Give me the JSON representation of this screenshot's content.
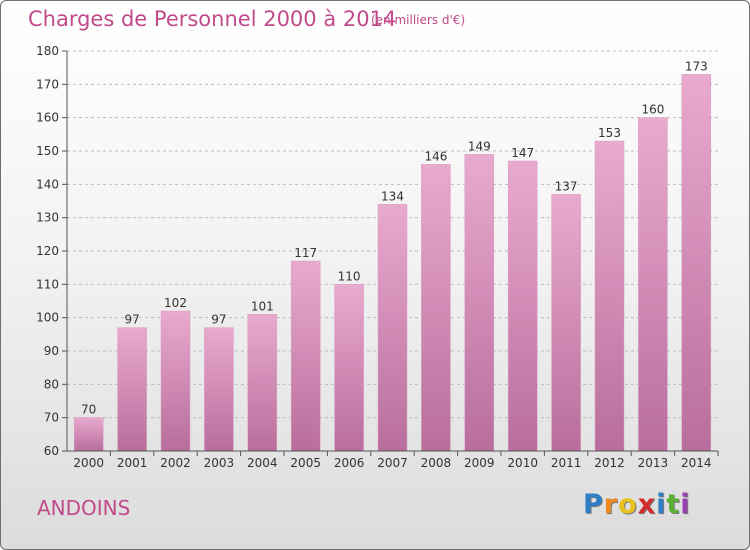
{
  "header": {
    "title": "Charges de Personnel 2000 à 2014",
    "unit_note": "(en milliers d'€)"
  },
  "footer": {
    "commune": "ANDOINS",
    "logo_letters": [
      {
        "ch": "P",
        "color": "#2f7fc6"
      },
      {
        "ch": "r",
        "color": "#f08a1e"
      },
      {
        "ch": "o",
        "color": "#e8c21c"
      },
      {
        "ch": "x",
        "color": "#d42b2b"
      },
      {
        "ch": "i",
        "color": "#2f7fc6"
      },
      {
        "ch": "t",
        "color": "#5ab030"
      },
      {
        "ch": "i",
        "color": "#9a3fb0"
      }
    ]
  },
  "colors": {
    "bar_top": "#e9aacf",
    "bar_bottom": "#b86e9c",
    "accent": "#c04a8a",
    "axis": "#555555",
    "grid": "#bbbbbb"
  },
  "chart_data": {
    "type": "bar",
    "categories": [
      "2000",
      "2001",
      "2002",
      "2003",
      "2004",
      "2005",
      "2006",
      "2007",
      "2008",
      "2009",
      "2010",
      "2011",
      "2012",
      "2013",
      "2014"
    ],
    "values": [
      70,
      97,
      102,
      97,
      101,
      117,
      110,
      134,
      146,
      149,
      147,
      137,
      153,
      160,
      173
    ],
    "data_labels": [
      "70",
      "97",
      "102",
      "97",
      "101",
      "117",
      "110",
      "134",
      "146",
      "149",
      "147",
      "137",
      "153",
      "160",
      "173"
    ],
    "title": "Charges de Personnel 2000 à 2014",
    "xlabel": "",
    "ylabel": "",
    "ylim": [
      60,
      180
    ],
    "yticks": [
      60,
      70,
      80,
      90,
      100,
      110,
      120,
      130,
      140,
      150,
      160,
      170,
      180
    ],
    "grid": true
  }
}
